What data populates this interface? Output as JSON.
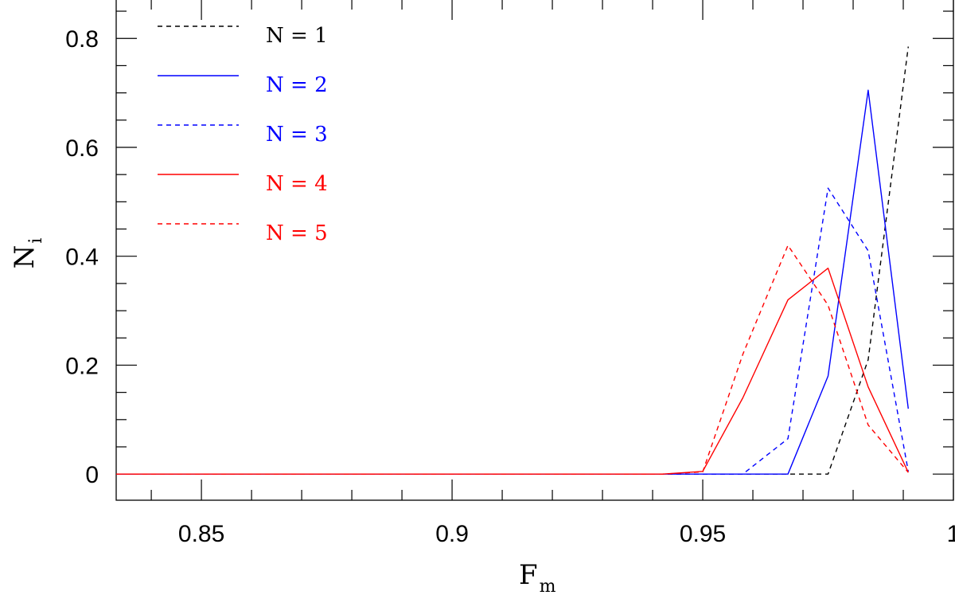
{
  "chart_data": {
    "type": "line",
    "title": "",
    "xlabel": "F",
    "xlabel_sub": "m",
    "ylabel": "N",
    "ylabel_sub": "i",
    "xlim": [
      0.833,
      1.0
    ],
    "ylim": [
      -0.048,
      0.872
    ],
    "xticks": [
      {
        "value": 0.85,
        "label": "0.85"
      },
      {
        "value": 0.9,
        "label": "0.9"
      },
      {
        "value": 0.95,
        "label": "0.95"
      },
      {
        "value": 1.0,
        "label": "1"
      }
    ],
    "yticks": [
      {
        "value": 0,
        "label": "0"
      },
      {
        "value": 0.2,
        "label": "0.2"
      },
      {
        "value": 0.4,
        "label": "0.4"
      },
      {
        "value": 0.6,
        "label": "0.6"
      },
      {
        "value": 0.8,
        "label": "0.8"
      }
    ],
    "x_minor_step": 0.01,
    "y_minor_step": 0.05,
    "grid": false,
    "legend": "top-left",
    "series": [
      {
        "name": "N = 1",
        "color": "#000000",
        "dash": "dashed",
        "x": [
          0.833,
          0.975,
          0.983,
          0.991
        ],
        "y": [
          0,
          0,
          0.21,
          0.785
        ]
      },
      {
        "name": "N = 2",
        "color": "#0000ff",
        "dash": "solid",
        "x": [
          0.833,
          0.967,
          0.975,
          0.983,
          0.991
        ],
        "y": [
          0,
          0,
          0.18,
          0.705,
          0.12
        ]
      },
      {
        "name": "N = 3",
        "color": "#0000ff",
        "dash": "dashed",
        "x": [
          0.833,
          0.958,
          0.967,
          0.975,
          0.983,
          0.991
        ],
        "y": [
          0,
          0,
          0.065,
          0.525,
          0.41,
          0.005
        ]
      },
      {
        "name": "N = 4",
        "color": "#ff0000",
        "dash": "solid",
        "x": [
          0.833,
          0.942,
          0.95,
          0.958,
          0.967,
          0.975,
          0.983,
          0.991
        ],
        "y": [
          0,
          0,
          0.005,
          0.14,
          0.32,
          0.378,
          0.16,
          0.003
        ]
      },
      {
        "name": "N = 5",
        "color": "#ff0000",
        "dash": "dashed",
        "x": [
          0.833,
          0.942,
          0.95,
          0.958,
          0.967,
          0.975,
          0.983,
          0.991
        ],
        "y": [
          0,
          0,
          0.004,
          0.22,
          0.42,
          0.31,
          0.09,
          0.003
        ]
      }
    ]
  }
}
